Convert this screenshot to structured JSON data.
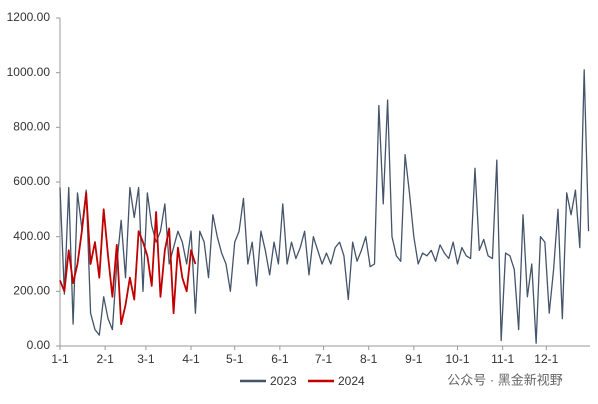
{
  "chart_data": {
    "type": "line",
    "x": [
      0,
      3,
      6,
      9,
      12,
      15,
      18,
      21,
      24,
      27,
      30,
      33,
      36,
      39,
      42,
      45,
      48,
      51,
      54,
      57,
      60,
      63,
      66,
      69,
      72,
      75,
      78,
      81,
      84,
      87,
      90,
      93,
      96,
      99,
      102,
      105,
      108,
      111,
      114,
      117,
      120,
      123,
      126,
      129,
      132,
      135,
      138,
      141,
      144,
      147,
      150,
      153,
      156,
      159,
      162,
      165,
      168,
      171,
      174,
      177,
      180,
      183,
      186,
      189,
      192,
      195,
      198,
      201,
      204,
      207,
      210,
      213,
      216,
      219,
      222,
      225,
      228,
      231,
      234,
      237,
      240,
      243,
      246,
      249,
      252,
      255,
      258,
      261,
      264,
      267,
      270,
      273,
      276,
      279,
      282,
      285,
      288,
      291,
      294,
      297,
      300,
      303,
      306,
      309,
      312,
      315,
      318,
      321,
      324,
      327,
      330,
      333,
      336,
      339,
      342,
      345,
      348,
      351,
      354,
      357,
      360,
      363
    ],
    "xlim": [
      0,
      364
    ],
    "xticks": [
      {
        "value": 0,
        "label": "1-1"
      },
      {
        "value": 31,
        "label": "2-1"
      },
      {
        "value": 59,
        "label": "3-1"
      },
      {
        "value": 90,
        "label": "4-1"
      },
      {
        "value": 120,
        "label": "5-1"
      },
      {
        "value": 151,
        "label": "6-1"
      },
      {
        "value": 181,
        "label": "7-1"
      },
      {
        "value": 212,
        "label": "8-1"
      },
      {
        "value": 243,
        "label": "9-1"
      },
      {
        "value": 273,
        "label": "10-1"
      },
      {
        "value": 304,
        "label": "11-1"
      },
      {
        "value": 334,
        "label": "12-1"
      }
    ],
    "ylim": [
      0,
      1200
    ],
    "yticks": [
      {
        "value": 0,
        "label": "0.00"
      },
      {
        "value": 200,
        "label": "200.00"
      },
      {
        "value": 400,
        "label": "400.00"
      },
      {
        "value": 600,
        "label": "600.00"
      },
      {
        "value": 800,
        "label": "800.00"
      },
      {
        "value": 1000,
        "label": "1000.00"
      },
      {
        "value": 1200,
        "label": "1200.00"
      }
    ],
    "series": [
      {
        "name": "2023",
        "color": "#44546a",
        "values": [
          580,
          190,
          580,
          80,
          560,
          430,
          570,
          120,
          60,
          40,
          180,
          100,
          60,
          300,
          460,
          250,
          580,
          470,
          580,
          200,
          560,
          440,
          380,
          420,
          520,
          300,
          360,
          420,
          380,
          300,
          420,
          120,
          420,
          380,
          250,
          480,
          400,
          340,
          300,
          200,
          380,
          420,
          540,
          300,
          380,
          220,
          420,
          350,
          260,
          380,
          300,
          520,
          300,
          380,
          320,
          360,
          420,
          260,
          400,
          350,
          300,
          340,
          300,
          360,
          380,
          330,
          170,
          380,
          310,
          350,
          400,
          290,
          300,
          880,
          520,
          900,
          400,
          330,
          310,
          700,
          560,
          400,
          300,
          340,
          330,
          350,
          310,
          370,
          340,
          320,
          380,
          300,
          360,
          330,
          320,
          650,
          350,
          390,
          330,
          320,
          680,
          20,
          340,
          330,
          280,
          60,
          480,
          180,
          300,
          10,
          400,
          380,
          120,
          280,
          500,
          100,
          560,
          480,
          570,
          360,
          1010,
          420
        ]
      },
      {
        "name": "2024",
        "color": "#c00000",
        "values": [
          240,
          200,
          350,
          230,
          300,
          420,
          560,
          300,
          380,
          250,
          500,
          330,
          180,
          370,
          80,
          150,
          250,
          170,
          420,
          380,
          330,
          220,
          490,
          180,
          350,
          430,
          120,
          360,
          250,
          200,
          350,
          300,
          null,
          null,
          null,
          null,
          null,
          null,
          null,
          null,
          null,
          null,
          null,
          null,
          null,
          null,
          null,
          null,
          null,
          null,
          null,
          null,
          null,
          null,
          null,
          null,
          null,
          null,
          null,
          null,
          null,
          null,
          null,
          null,
          null,
          null,
          null,
          null,
          null,
          null,
          null,
          null,
          null,
          null,
          null,
          null,
          null,
          null,
          null,
          null,
          null,
          null,
          null,
          null,
          null,
          null,
          null,
          null,
          null,
          null,
          null,
          null,
          null,
          null,
          null,
          null,
          null,
          null,
          null,
          null,
          null,
          null,
          null,
          null,
          null,
          null,
          null,
          null,
          null,
          null,
          null,
          null,
          null,
          null,
          null,
          null,
          null,
          null,
          null,
          null,
          null,
          null
        ]
      }
    ],
    "watermark": "公众号 · 黑金新视野"
  }
}
